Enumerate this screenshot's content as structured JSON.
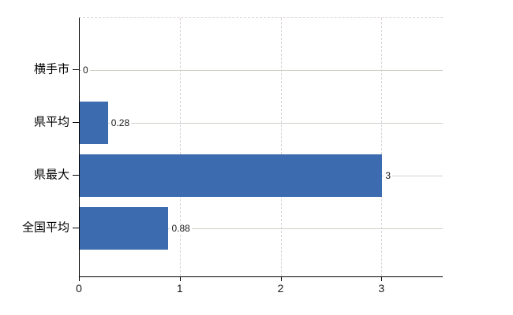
{
  "chart_data": {
    "type": "bar",
    "orientation": "horizontal",
    "title": "",
    "xlabel": "",
    "ylabel": "",
    "categories": [
      "横手市",
      "県平均",
      "県最大",
      "全国平均"
    ],
    "values": [
      0,
      0.28,
      3,
      0.88
    ],
    "value_labels": [
      "0",
      "0.28",
      "3",
      "0.88"
    ],
    "xticks": [
      0,
      1,
      2,
      3
    ],
    "xtick_labels": [
      "0",
      "1",
      "2",
      "3"
    ],
    "xlim": [
      0,
      3.6
    ],
    "grid": true,
    "legend": false,
    "colors": {
      "bar": "#3c6bb0",
      "hgrid": "#ccd3c6",
      "vgrid_dashed": "#d8d0d8",
      "axis": "#000000",
      "text": "#1a1a1a",
      "background": "#ffffff"
    }
  }
}
